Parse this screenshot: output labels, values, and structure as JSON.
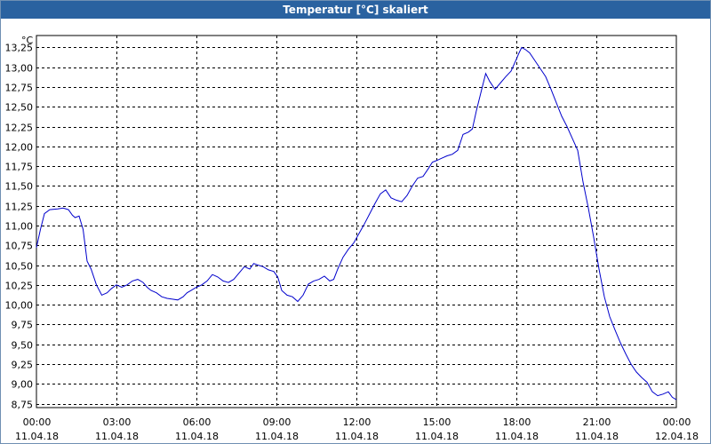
{
  "window": {
    "title": "Temperatur [°C] skaliert"
  },
  "colors": {
    "titlebar": "#2a62a0",
    "line": "#0000cc",
    "grid": "#000000"
  },
  "chart_data": {
    "type": "line",
    "title": "Temperatur [°C] skaliert",
    "ylabel": "°C",
    "xlabel": "",
    "grid": true,
    "ylim": [
      8.7,
      13.4
    ],
    "xlim_hours": [
      0,
      24
    ],
    "yticks": [
      "8,75",
      "9,00",
      "9,25",
      "9,50",
      "9,75",
      "10,00",
      "10,25",
      "10,50",
      "10,75",
      "11,00",
      "11,25",
      "11,50",
      "11,75",
      "12,00",
      "12,25",
      "12,50",
      "12,75",
      "13,00",
      "13,25"
    ],
    "ytick_values": [
      8.75,
      9.0,
      9.25,
      9.5,
      9.75,
      10.0,
      10.25,
      10.5,
      10.75,
      11.0,
      11.25,
      11.5,
      11.75,
      12.0,
      12.25,
      12.5,
      12.75,
      13.0,
      13.25
    ],
    "xticks": [
      {
        "time": "00:00",
        "date": "11.04.18",
        "hour": 0
      },
      {
        "time": "03:00",
        "date": "11.04.18",
        "hour": 3
      },
      {
        "time": "06:00",
        "date": "11.04.18",
        "hour": 6
      },
      {
        "time": "09:00",
        "date": "11.04.18",
        "hour": 9
      },
      {
        "time": "12:00",
        "date": "11.04.18",
        "hour": 12
      },
      {
        "time": "15:00",
        "date": "11.04.18",
        "hour": 15
      },
      {
        "time": "18:00",
        "date": "11.04.18",
        "hour": 18
      },
      {
        "time": "21:00",
        "date": "11.04.18",
        "hour": 21
      },
      {
        "time": "00:00",
        "date": "12.04.18",
        "hour": 24
      }
    ],
    "series": [
      {
        "x_hours": [
          0,
          0.15,
          0.3,
          0.5,
          0.8,
          1.0,
          1.2,
          1.35,
          1.45,
          1.6,
          1.75,
          1.9,
          2.05,
          2.25,
          2.45,
          2.65,
          2.8,
          3.0,
          3.2,
          3.4,
          3.6,
          3.8,
          4.0,
          4.15,
          4.3,
          4.5,
          4.7,
          4.9,
          5.1,
          5.3,
          5.5,
          5.65,
          5.8,
          6.0,
          6.2,
          6.4,
          6.6,
          6.8,
          7.0,
          7.2,
          7.4,
          7.6,
          7.8,
          8.0,
          8.15,
          8.3,
          8.5,
          8.7,
          8.9,
          9.05,
          9.2,
          9.4,
          9.6,
          9.8,
          10.0,
          10.2,
          10.4,
          10.6,
          10.8,
          11.0,
          11.15,
          11.3,
          11.5,
          11.7,
          11.9,
          12.1,
          12.3,
          12.5,
          12.7,
          12.9,
          13.1,
          13.3,
          13.5,
          13.7,
          13.9,
          14.1,
          14.3,
          14.5,
          14.7,
          14.85,
          15.0,
          15.2,
          15.4,
          15.6,
          15.8,
          16.0,
          16.2,
          16.35,
          16.5,
          16.7,
          16.85,
          17.0,
          17.2,
          17.4,
          17.6,
          17.8,
          18.0,
          18.1,
          18.2,
          18.35,
          18.5,
          18.7,
          18.9,
          19.1,
          19.3,
          19.5,
          19.7,
          19.9,
          20.1,
          20.3,
          20.5,
          20.7,
          20.9,
          21.1,
          21.3,
          21.5,
          21.7,
          21.9,
          22.1,
          22.3,
          22.5,
          22.7,
          22.9,
          23.1,
          23.3,
          23.5,
          23.7,
          23.85,
          24.0
        ],
        "values": [
          10.72,
          10.95,
          11.15,
          11.2,
          11.21,
          11.22,
          11.2,
          11.13,
          11.1,
          11.12,
          10.95,
          10.55,
          10.45,
          10.25,
          10.12,
          10.15,
          10.2,
          10.25,
          10.22,
          10.25,
          10.3,
          10.32,
          10.28,
          10.22,
          10.18,
          10.15,
          10.1,
          10.08,
          10.07,
          10.06,
          10.1,
          10.15,
          10.18,
          10.22,
          10.25,
          10.3,
          10.38,
          10.35,
          10.3,
          10.28,
          10.32,
          10.4,
          10.48,
          10.45,
          10.52,
          10.5,
          10.48,
          10.44,
          10.42,
          10.35,
          10.18,
          10.12,
          10.1,
          10.04,
          10.12,
          10.26,
          10.3,
          10.32,
          10.36,
          10.3,
          10.32,
          10.45,
          10.6,
          10.7,
          10.78,
          10.9,
          11.02,
          11.15,
          11.28,
          11.4,
          11.45,
          11.35,
          11.32,
          11.3,
          11.38,
          11.5,
          11.6,
          11.62,
          11.72,
          11.8,
          11.82,
          11.85,
          11.88,
          11.9,
          11.95,
          12.15,
          12.18,
          12.22,
          12.45,
          12.72,
          12.92,
          12.82,
          12.72,
          12.8,
          12.88,
          12.95,
          13.1,
          13.18,
          13.25,
          13.22,
          13.18,
          13.08,
          12.98,
          12.88,
          12.72,
          12.55,
          12.38,
          12.25,
          12.1,
          11.95,
          11.55,
          11.22,
          10.85,
          10.45,
          10.1,
          9.85,
          9.68,
          9.52,
          9.38,
          9.25,
          9.15,
          9.08,
          9.02,
          8.9,
          8.85,
          8.87,
          8.9,
          8.83,
          8.8
        ],
        "color": "#0000cc"
      }
    ]
  }
}
